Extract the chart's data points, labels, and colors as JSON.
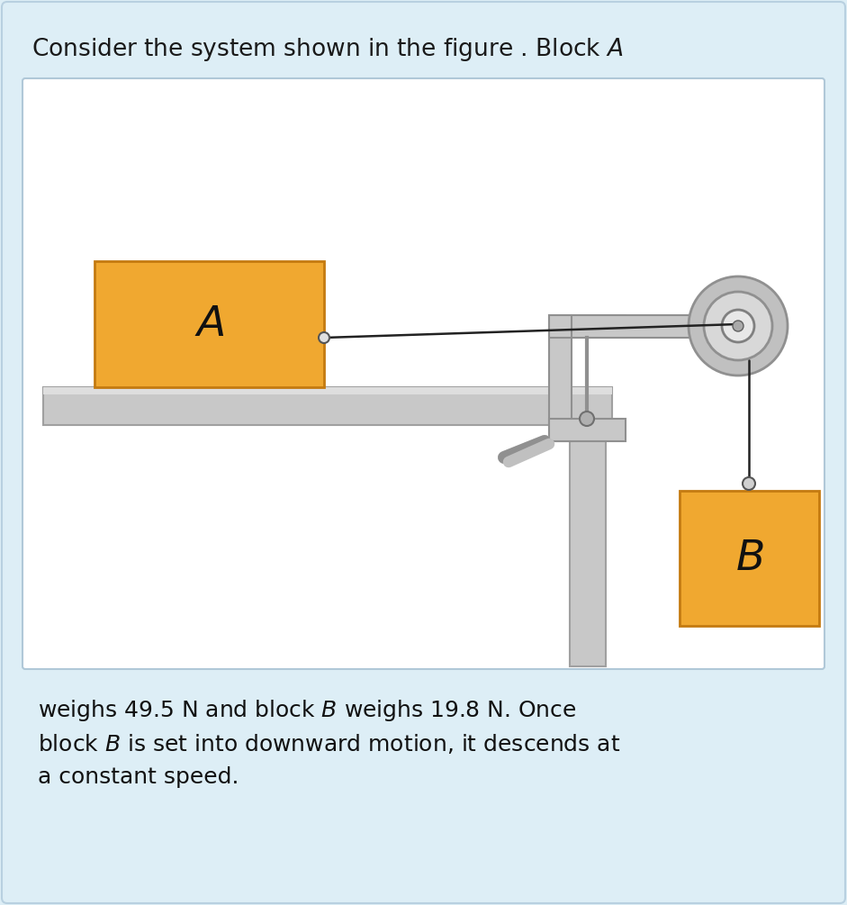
{
  "background_color": "#ddeef6",
  "diagram_bg": "#ffffff",
  "title_text": "Consider the system shown in the figure . Block $\\mathit{A}$",
  "title_fontsize": 19,
  "caption_text1": "weighs 49.5 N and block $\\mathit{B}$ weighs 19.8 N. Once",
  "caption_text2": "block $\\mathit{B}$ is set into downward motion, it descends at",
  "caption_text3": "a constant speed.",
  "caption_fontsize": 18,
  "block_A_color": "#f0a830",
  "block_A_edge": "#c47a10",
  "block_B_color": "#f0a830",
  "block_B_edge": "#c47a10",
  "table_color": "#c8c8c8",
  "table_edge": "#a0a0a0",
  "pulley_outer_color": "#c0c0c0",
  "pulley_mid_color": "#d0d0d0",
  "pulley_hub_color": "#e0e0e0",
  "pulley_edge": "#909090",
  "clamp_color": "#c8c8c8",
  "clamp_edge": "#909090",
  "rope_color": "#222222",
  "post_color": "#c8c8c8",
  "post_edge": "#a0a0a0"
}
